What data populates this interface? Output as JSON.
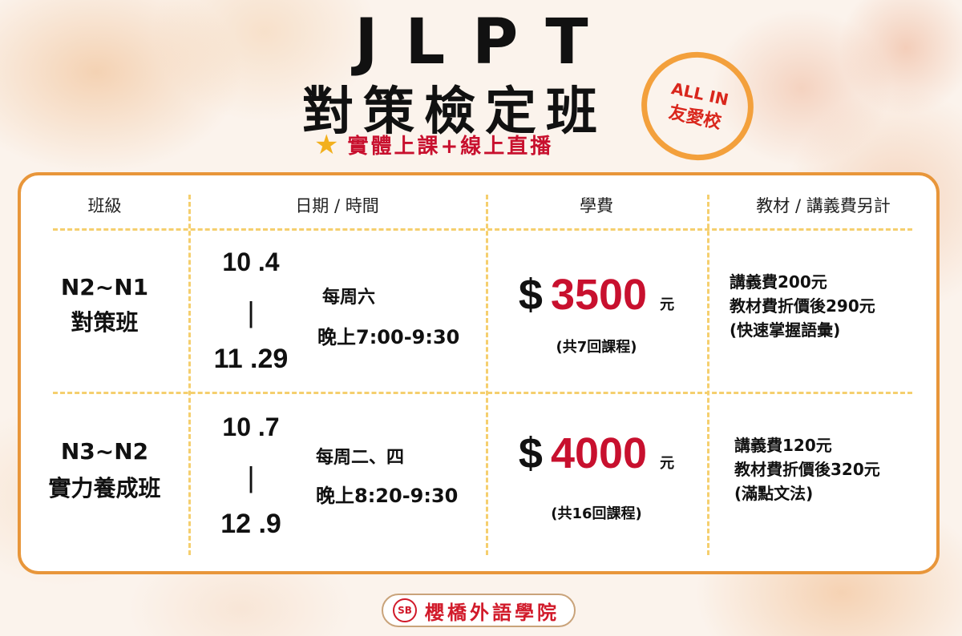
{
  "title": {
    "line1": "JLPT",
    "line2": "對策檢定班",
    "subtitle": "實體上課+線上直播"
  },
  "badge": {
    "line1": "ALL IN",
    "line2": "友愛校"
  },
  "table": {
    "headers": [
      "班級",
      "日期 / 時間",
      "學費",
      "教材 / 講義費另計"
    ],
    "rows": [
      {
        "class_line1": "N2~N1",
        "class_line2": "對策班",
        "start": "10 .4",
        "sep": "|",
        "end": "11 .29",
        "day": "每周六",
        "time": "晚上7:00-9:30",
        "currency": "$",
        "price": "3500",
        "unit": "元",
        "sessions": "(共7回課程)",
        "material1": "講義費200元",
        "material2": "教材費折價後290元",
        "material3": "(快速掌握語彙)"
      },
      {
        "class_line1": "N3~N2",
        "class_line2": "實力養成班",
        "start": "10 .7",
        "sep": "|",
        "end": "12 .9",
        "day": "每周二、四",
        "time": "晚上8:20-9:30",
        "currency": "$",
        "price": "4000",
        "unit": "元",
        "sessions": "(共16回課程)",
        "material1": "講義費120元",
        "material2": "教材費折價後320元",
        "material3": "(滿點文法)"
      }
    ]
  },
  "footer": {
    "logo": "SB",
    "name": "櫻橋外語學院"
  },
  "colors": {
    "accent": "#e8963a",
    "price": "#c8102e",
    "divider": "#f5cf6e"
  }
}
